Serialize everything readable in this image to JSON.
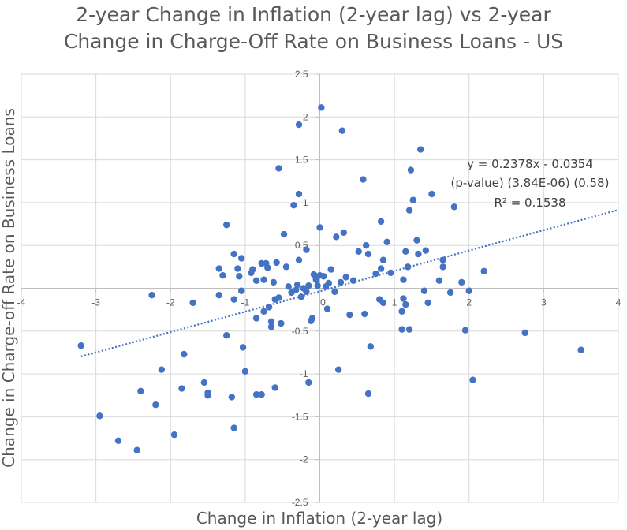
{
  "chart_data": {
    "type": "scatter",
    "title_line1": "2-year Change in Inflation (2-year lag) vs 2-year",
    "title_line2": "Change in Charge-Off Rate on Business Loans - US",
    "xlabel": "Change in Inflation (2-year lag)",
    "ylabel": "Change in Charge-off Rate on Business Loans",
    "xlim": [
      -4,
      4
    ],
    "ylim": [
      -2.5,
      2.5
    ],
    "x_ticks": [
      "-4",
      "-3",
      "-2",
      "-1",
      "0",
      "1",
      "2",
      "3",
      "4"
    ],
    "y_ticks": [
      "2.5",
      "2",
      "1.5",
      "1",
      "0.5",
      "-0.5",
      "-1",
      "-1.5",
      "-2",
      "-2.5"
    ],
    "grid": true,
    "marker_color": "#4472C4",
    "trendline": {
      "slope": 0.2378,
      "intercept": -0.0354,
      "x_range": [
        -3.2,
        4.0
      ],
      "style": "dotted"
    },
    "equation_lines": [
      "y = 0.2378x - 0.0354",
      "(p-value)  (3.84E-06) (0.58)",
      "R² = 0.1538"
    ],
    "points": [
      [
        -3.2,
        -0.67
      ],
      [
        -2.95,
        -1.49
      ],
      [
        -2.7,
        -1.78
      ],
      [
        -2.45,
        -1.89
      ],
      [
        -2.4,
        -1.2
      ],
      [
        -2.25,
        -0.08
      ],
      [
        -2.2,
        -1.36
      ],
      [
        -2.12,
        -0.95
      ],
      [
        -1.95,
        -1.71
      ],
      [
        -1.85,
        -1.17
      ],
      [
        -1.82,
        -0.77
      ],
      [
        -1.7,
        -0.17
      ],
      [
        -1.55,
        -1.1
      ],
      [
        -1.5,
        -1.22
      ],
      [
        -1.5,
        -1.25
      ],
      [
        -1.35,
        -0.08
      ],
      [
        -1.3,
        0.15
      ],
      [
        -1.35,
        0.23
      ],
      [
        -1.25,
        0.74
      ],
      [
        -1.25,
        -0.55
      ],
      [
        -1.18,
        -1.27
      ],
      [
        -1.15,
        -1.63
      ],
      [
        -1.15,
        -0.13
      ],
      [
        -1.15,
        0.4
      ],
      [
        -1.1,
        0.23
      ],
      [
        -1.08,
        0.14
      ],
      [
        -1.05,
        0.35
      ],
      [
        -1.05,
        -0.03
      ],
      [
        -1.03,
        -0.69
      ],
      [
        -1.0,
        -0.97
      ],
      [
        -0.92,
        0.18
      ],
      [
        -0.9,
        0.22
      ],
      [
        -0.85,
        -0.35
      ],
      [
        -0.85,
        0.09
      ],
      [
        -0.85,
        -1.24
      ],
      [
        -0.78,
        -1.24
      ],
      [
        -0.78,
        0.29
      ],
      [
        -0.75,
        0.1
      ],
      [
        -0.75,
        -0.27
      ],
      [
        -0.72,
        0.29
      ],
      [
        -0.7,
        0.24
      ],
      [
        -0.68,
        -0.22
      ],
      [
        -0.65,
        -0.39
      ],
      [
        -0.65,
        -0.45
      ],
      [
        -0.62,
        0.07
      ],
      [
        -0.6,
        -0.13
      ],
      [
        -0.6,
        -1.16
      ],
      [
        -0.58,
        0.3
      ],
      [
        -0.55,
        1.4
      ],
      [
        -0.55,
        -0.11
      ],
      [
        -0.52,
        -0.41
      ],
      [
        -0.48,
        0.63
      ],
      [
        -0.45,
        0.25
      ],
      [
        -0.42,
        0.02
      ],
      [
        -0.38,
        -0.05
      ],
      [
        -0.35,
        0.97
      ],
      [
        -0.32,
        -0.02
      ],
      [
        -0.3,
        0.04
      ],
      [
        -0.28,
        1.1
      ],
      [
        -0.28,
        0.33
      ],
      [
        -0.28,
        1.91
      ],
      [
        -0.25,
        -0.1
      ],
      [
        -0.22,
        0.0
      ],
      [
        -0.18,
        -0.04
      ],
      [
        -0.18,
        0.45
      ],
      [
        -0.15,
        0.03
      ],
      [
        -0.15,
        -1.1
      ],
      [
        -0.12,
        -0.38
      ],
      [
        -0.1,
        -0.35
      ],
      [
        -0.08,
        0.16
      ],
      [
        -0.05,
        0.1
      ],
      [
        -0.03,
        0.03
      ],
      [
        0.0,
        0.71
      ],
      [
        0.0,
        0.15
      ],
      [
        0.02,
        2.11
      ],
      [
        0.05,
        0.14
      ],
      [
        0.08,
        0.02
      ],
      [
        0.1,
        -0.24
      ],
      [
        0.12,
        0.06
      ],
      [
        0.15,
        0.22
      ],
      [
        0.2,
        -0.04
      ],
      [
        0.22,
        0.6
      ],
      [
        0.25,
        -0.95
      ],
      [
        0.28,
        0.07
      ],
      [
        0.3,
        1.84
      ],
      [
        0.32,
        0.65
      ],
      [
        0.35,
        0.13
      ],
      [
        0.4,
        -0.31
      ],
      [
        0.45,
        0.09
      ],
      [
        0.52,
        0.43
      ],
      [
        0.58,
        1.27
      ],
      [
        0.6,
        -0.3
      ],
      [
        0.62,
        0.5
      ],
      [
        0.65,
        0.4
      ],
      [
        0.65,
        -1.23
      ],
      [
        0.68,
        -0.68
      ],
      [
        0.75,
        0.17
      ],
      [
        0.8,
        -0.13
      ],
      [
        0.82,
        0.78
      ],
      [
        0.82,
        0.23
      ],
      [
        0.85,
        -0.17
      ],
      [
        0.85,
        0.33
      ],
      [
        0.9,
        0.54
      ],
      [
        0.95,
        0.18
      ],
      [
        1.1,
        -0.27
      ],
      [
        1.1,
        -0.48
      ],
      [
        1.12,
        0.1
      ],
      [
        1.12,
        -0.12
      ],
      [
        1.15,
        0.43
      ],
      [
        1.15,
        -0.19
      ],
      [
        1.18,
        0.25
      ],
      [
        1.2,
        0.91
      ],
      [
        1.2,
        -0.48
      ],
      [
        1.22,
        1.38
      ],
      [
        1.25,
        1.03
      ],
      [
        1.3,
        0.56
      ],
      [
        1.32,
        0.4
      ],
      [
        1.35,
        1.62
      ],
      [
        1.4,
        -0.03
      ],
      [
        1.42,
        0.44
      ],
      [
        1.45,
        -0.17
      ],
      [
        1.5,
        1.1
      ],
      [
        1.6,
        0.09
      ],
      [
        1.65,
        0.33
      ],
      [
        1.65,
        0.25
      ],
      [
        1.75,
        -0.05
      ],
      [
        1.8,
        0.95
      ],
      [
        1.9,
        0.07
      ],
      [
        1.95,
        -0.49
      ],
      [
        2.0,
        -0.03
      ],
      [
        2.05,
        -1.07
      ],
      [
        2.2,
        0.2
      ],
      [
        2.75,
        -0.52
      ],
      [
        3.5,
        -0.72
      ]
    ]
  }
}
